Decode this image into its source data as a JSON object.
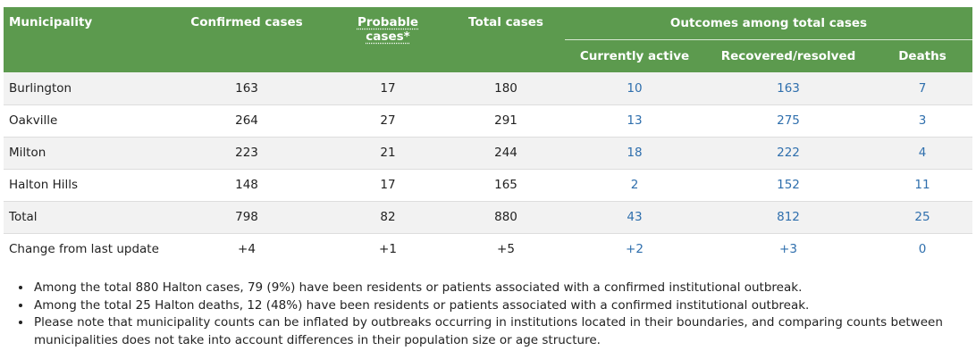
{
  "table": {
    "headers": {
      "municipality": "Municipality",
      "confirmed": "Confirmed cases",
      "probable": "Probable cases*",
      "total": "Total cases",
      "outcomes": "Outcomes among total cases",
      "active": "Currently active",
      "recovered": "Recovered/resolved",
      "deaths": "Deaths"
    },
    "header_color": "#5c9a4e",
    "link_color": "#2f6fad",
    "rows": [
      {
        "municipality": "Burlington",
        "confirmed": "163",
        "probable": "17",
        "total": "180",
        "active": "10",
        "recovered": "163",
        "deaths": "7"
      },
      {
        "municipality": "Oakville",
        "confirmed": "264",
        "probable": "27",
        "total": "291",
        "active": "13",
        "recovered": "275",
        "deaths": "3"
      },
      {
        "municipality": "Milton",
        "confirmed": "223",
        "probable": "21",
        "total": "244",
        "active": "18",
        "recovered": "222",
        "deaths": "4"
      },
      {
        "municipality": "Halton Hills",
        "confirmed": "148",
        "probable": "17",
        "total": "165",
        "active": "2",
        "recovered": "152",
        "deaths": "11"
      },
      {
        "municipality": "Total",
        "confirmed": "798",
        "probable": "82",
        "total": "880",
        "active": "43",
        "recovered": "812",
        "deaths": "25"
      },
      {
        "municipality": "Change from last update",
        "confirmed": "+4",
        "probable": "+1",
        "total": "+5",
        "active": "+2",
        "recovered": "+3",
        "deaths": "0"
      }
    ]
  },
  "notes": [
    "Among the total 880 Halton cases, 79 (9%) have been residents or patients associated with a confirmed institutional outbreak.",
    "Among the total 25 Halton deaths, 12 (48%) have been residents or patients associated with a confirmed institutional outbreak.",
    "Please note that municipality counts can be inflated by outbreaks occurring in institutions located in their boundaries, and comparing counts between municipalities does not take into account differences in their population size or age structure."
  ]
}
